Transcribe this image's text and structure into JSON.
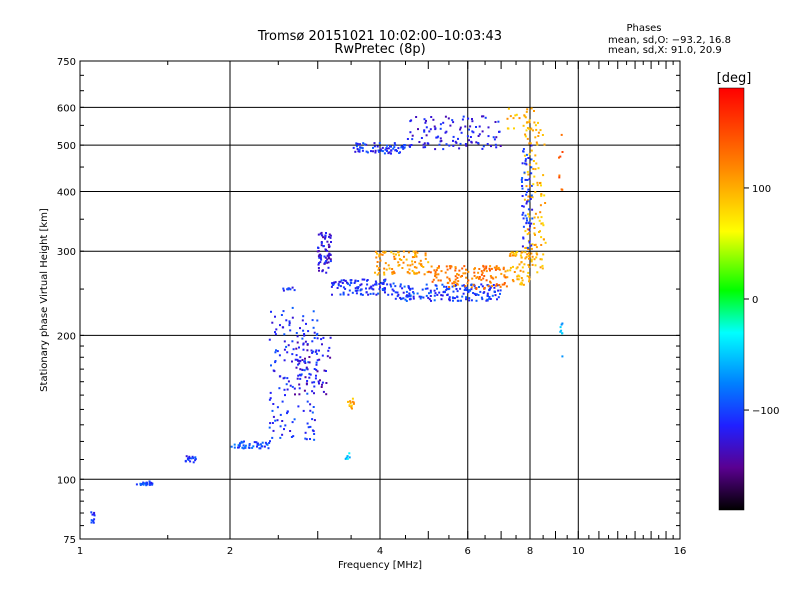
{
  "chart_data": {
    "type": "scatter",
    "title": "Tromsø 20151021 10:02:00–10:03:43",
    "subtitle": "RwPretec (8p)",
    "xlabel": "Frequency [MHz]",
    "ylabel": "Stationary phase Virtual Height [km]",
    "x_scale": "log",
    "y_scale": "log",
    "xlim": [
      1,
      16
    ],
    "ylim": [
      75,
      750
    ],
    "x_ticks": [
      1,
      2,
      4,
      6,
      8,
      10,
      16
    ],
    "x_tick_labels": [
      "1",
      "2",
      "4",
      "6",
      "8",
      "10",
      "16"
    ],
    "y_ticks": [
      75,
      100,
      200,
      300,
      400,
      500,
      600,
      750
    ],
    "y_tick_labels": [
      "75",
      "100",
      "200",
      "300",
      "400",
      "500",
      "600",
      "750"
    ],
    "grid": true,
    "phases_box": {
      "title": "Phases",
      "line_o": "mean, sd,O: −93.2, 16.8",
      "line_x": "mean, sd,X:  91.0, 20.9"
    },
    "colorbar": {
      "label": "[deg]",
      "ticks": [
        100,
        0,
        -100
      ],
      "tick_labels": [
        "100",
        "0",
        "−100"
      ],
      "range": [
        -190,
        190
      ]
    },
    "clusters": [
      {
        "x_from": 1.05,
        "x_to": 1.07,
        "y_from": 80,
        "y_to": 86,
        "n": 10,
        "phase": -110
      },
      {
        "x_from": 1.3,
        "x_to": 1.4,
        "y_from": 97,
        "y_to": 99,
        "n": 22,
        "phase": -100
      },
      {
        "x_from": 1.63,
        "x_to": 1.72,
        "y_from": 108,
        "y_to": 112,
        "n": 16,
        "phase": -110
      },
      {
        "x_from": 2.0,
        "x_to": 2.4,
        "y_from": 116,
        "y_to": 120,
        "n": 45,
        "phase": -100
      },
      {
        "x_from": 2.4,
        "x_to": 3.0,
        "y_from": 120,
        "y_to": 230,
        "n": 160,
        "phase": -110
      },
      {
        "x_from": 2.7,
        "x_to": 3.2,
        "y_from": 150,
        "y_to": 200,
        "n": 60,
        "phase": -130
      },
      {
        "x_from": 2.55,
        "x_to": 2.7,
        "y_from": 248,
        "y_to": 252,
        "n": 10,
        "phase": -110
      },
      {
        "x_from": 3.0,
        "x_to": 3.2,
        "y_from": 270,
        "y_to": 330,
        "n": 70,
        "phase": -125
      },
      {
        "x_from": 3.2,
        "x_to": 4.3,
        "y_from": 243,
        "y_to": 262,
        "n": 110,
        "phase": -110
      },
      {
        "x_from": 4.3,
        "x_to": 7.0,
        "y_from": 236,
        "y_to": 256,
        "n": 170,
        "phase": -105
      },
      {
        "x_from": 3.9,
        "x_to": 5.0,
        "y_from": 268,
        "y_to": 300,
        "n": 90,
        "phase": 105
      },
      {
        "x_from": 5.0,
        "x_to": 7.2,
        "y_from": 250,
        "y_to": 280,
        "n": 130,
        "phase": 125
      },
      {
        "x_from": 7.2,
        "x_to": 8.0,
        "y_from": 255,
        "y_to": 300,
        "n": 60,
        "phase": 100
      },
      {
        "x_from": 7.8,
        "x_to": 8.6,
        "y_from": 270,
        "y_to": 560,
        "n": 110,
        "phase": 95
      },
      {
        "x_from": 7.7,
        "x_to": 8.1,
        "y_from": 300,
        "y_to": 500,
        "n": 60,
        "phase": -110
      },
      {
        "x_from": 3.5,
        "x_to": 4.5,
        "y_from": 480,
        "y_to": 505,
        "n": 70,
        "phase": -110
      },
      {
        "x_from": 4.5,
        "x_to": 7.0,
        "y_from": 490,
        "y_to": 575,
        "n": 110,
        "phase": -120
      },
      {
        "x_from": 7.2,
        "x_to": 8.2,
        "y_from": 540,
        "y_to": 600,
        "n": 25,
        "phase": 95
      },
      {
        "x_from": 3.45,
        "x_to": 3.55,
        "y_from": 140,
        "y_to": 148,
        "n": 12,
        "phase": 100
      },
      {
        "x_from": 3.4,
        "x_to": 3.5,
        "y_from": 110,
        "y_to": 114,
        "n": 8,
        "phase": -50
      },
      {
        "x_from": 9.2,
        "x_to": 9.3,
        "y_from": 180,
        "y_to": 215,
        "n": 8,
        "phase": -60
      },
      {
        "x_from": 9.1,
        "x_to": 9.3,
        "y_from": 400,
        "y_to": 560,
        "n": 8,
        "phase": 140
      }
    ]
  }
}
